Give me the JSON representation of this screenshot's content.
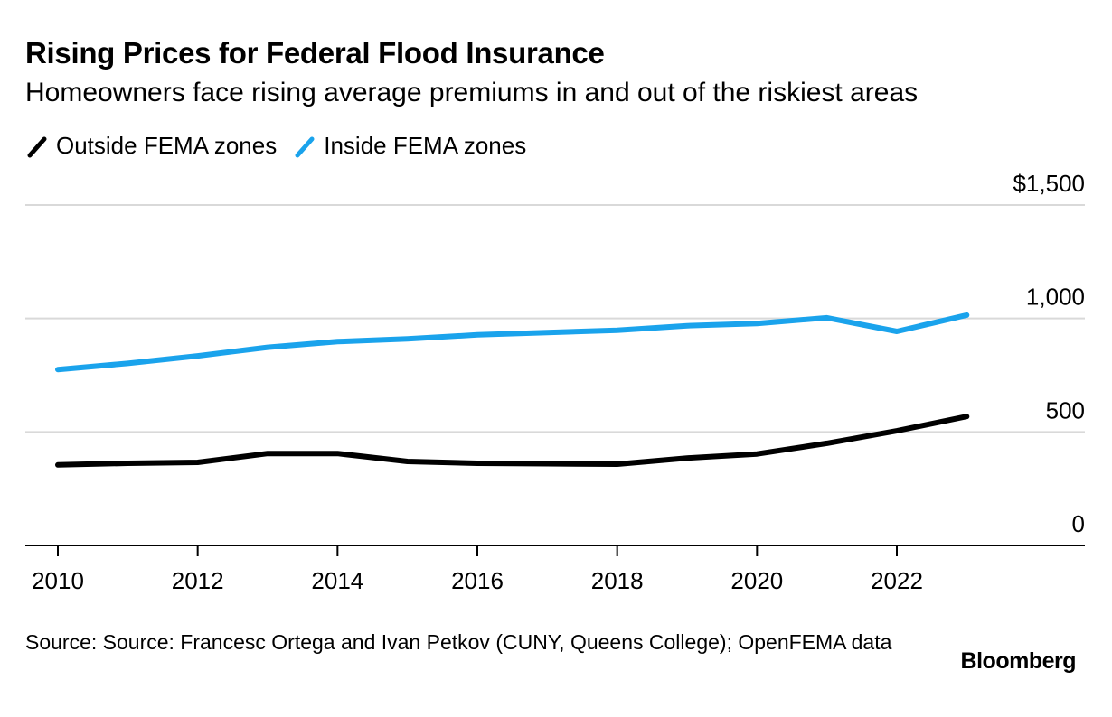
{
  "chart_data": {
    "type": "line",
    "title": "Rising Prices for Federal Flood Insurance",
    "subtitle": "Homeowners face rising average premiums in and out of the riskiest areas",
    "x": [
      2010,
      2011,
      2012,
      2013,
      2014,
      2015,
      2016,
      2017,
      2018,
      2019,
      2020,
      2021,
      2022,
      2023
    ],
    "series": [
      {
        "name": "Outside FEMA zones",
        "color": "#000000",
        "values": [
          355,
          362,
          366,
          405,
          405,
          370,
          362,
          360,
          358,
          385,
          403,
          450,
          505,
          568
        ]
      },
      {
        "name": "Inside FEMA zones",
        "color": "#1aa3ec",
        "values": [
          775,
          802,
          835,
          873,
          898,
          910,
          928,
          938,
          948,
          968,
          978,
          1003,
          943,
          1015
        ]
      }
    ],
    "xticks": [
      "2010",
      "2012",
      "2014",
      "2016",
      "2018",
      "2020",
      "2022"
    ],
    "xtick_values": [
      2010,
      2012,
      2014,
      2016,
      2018,
      2020,
      2022
    ],
    "yticks": [
      "0",
      "500",
      "1,000",
      "$1,500"
    ],
    "ytick_values": [
      0,
      500,
      1000,
      1500
    ],
    "ylim": [
      0,
      1500
    ],
    "xlim": [
      2009.55,
      2024.6
    ],
    "grid": true,
    "legend_position": "top-left"
  },
  "source": "Source: Source: Francesc Ortega and Ivan Petkov (CUNY, Queens College); OpenFEMA data",
  "brand": "Bloomberg"
}
